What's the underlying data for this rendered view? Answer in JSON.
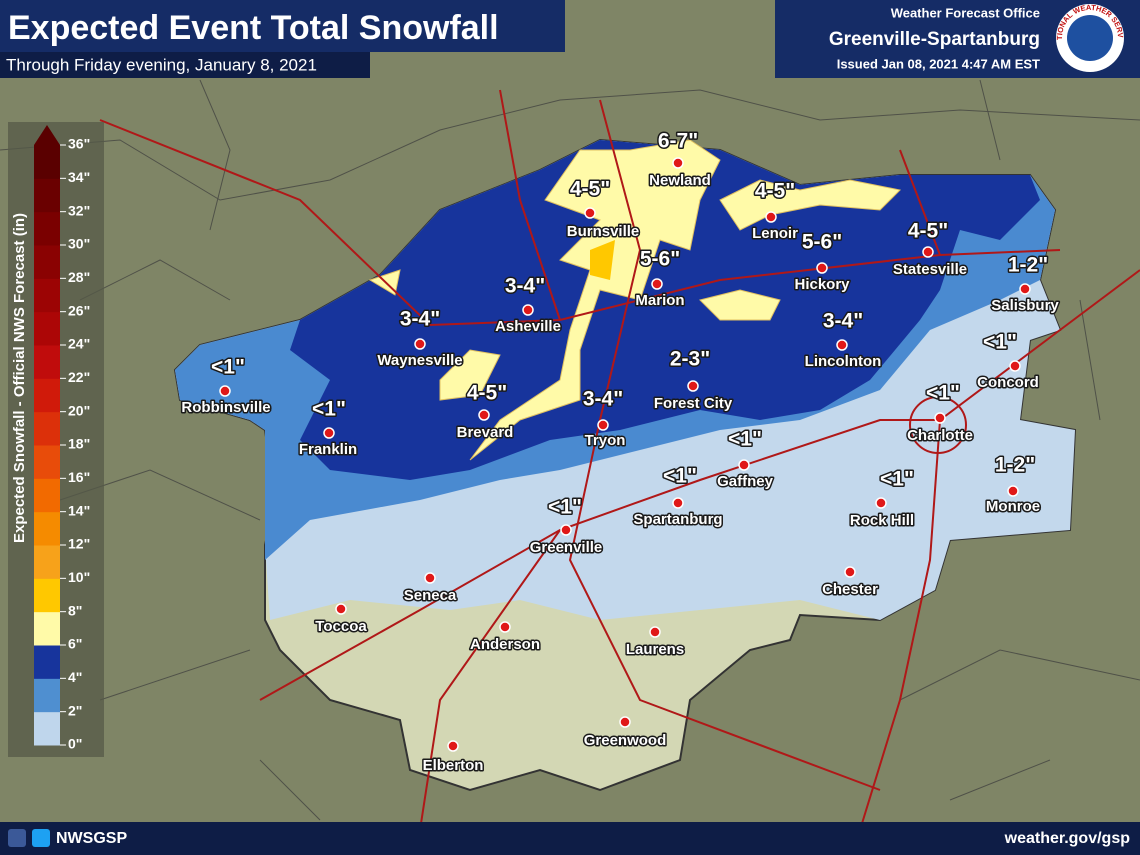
{
  "header": {
    "title": "Expected Event Total Snowfall",
    "subtitle": "Through Friday evening, January 8, 2021",
    "office_line": "Weather Forecast Office",
    "office": "Greenville-Spartanburg",
    "issued": "Issued Jan 08, 2021 4:47 AM EST",
    "logo_text": "NATIONAL WEATHER SERVICE"
  },
  "legend": {
    "title": "Expected Snowfall - Official NWS Forecast (in)",
    "ticks": [
      "0\"",
      "2\"",
      "4\"",
      "6\"",
      "8\"",
      "10\"",
      "12\"",
      "14\"",
      "16\"",
      "18\"",
      "20\"",
      "22\"",
      "24\"",
      "26\"",
      "28\"",
      "30\"",
      "32\"",
      "34\"",
      "36\""
    ],
    "colors": [
      "#bfd6ec",
      "#4f8fd0",
      "#17349c",
      "#fffaa8",
      "#ffc800",
      "#f7a21a",
      "#f58b00",
      "#f26a00",
      "#e84c0a",
      "#dc300a",
      "#d01a0a",
      "#c00c0c",
      "#ac0606",
      "#9c0404",
      "#8a0202",
      "#7a0000",
      "#6a0000",
      "#5a0000"
    ]
  },
  "cities": [
    "Newland",
    "Burnsville",
    "Lenoir",
    "Hickory",
    "Statesville",
    "Salisbury",
    "Marion",
    "Asheville",
    "Waynesville",
    "Lincolnton",
    "Concord",
    "Robbinsville",
    "Franklin",
    "Brevard",
    "Tryon",
    "Forest City",
    "Charlotte",
    "Gaffney",
    "Spartanburg",
    "Greenville",
    "Rock Hill",
    "Monroe",
    "Seneca",
    "Toccoa",
    "Anderson",
    "Laurens",
    "Chester",
    "Greenwood",
    "Elberton"
  ],
  "amounts": [
    "6-7\"",
    "4-5\"",
    "4-5\"",
    "5-6\"",
    "5-6\"",
    "4-5\"",
    "1-2\"",
    "3-4\"",
    "3-4\"",
    "3-4\"",
    "<1\"",
    "<1\"",
    "<1\"",
    "4-5\"",
    "3-4\"",
    "2-3\"",
    "<1\"",
    "<1\"",
    "<1\"",
    "<1\"",
    "<1\"",
    "1-2\""
  ],
  "footer": {
    "handle": "NWSGSP",
    "url": "weather.gov/gsp"
  }
}
